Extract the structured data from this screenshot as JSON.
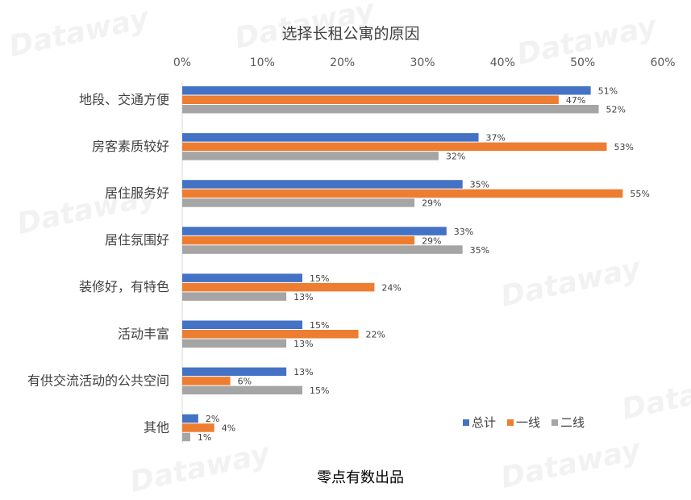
{
  "chart_data": {
    "type": "bar",
    "orientation": "horizontal",
    "title": "选择长租公寓的原因",
    "categories": [
      "地段、交通方便",
      "房客素质较好",
      "居住服务好",
      "居住氛围好",
      "装修好，有特色",
      "活动丰富",
      "有供交流活动的公共空间",
      "其他"
    ],
    "series": [
      {
        "name": "总计",
        "color": "#4472c4",
        "values": [
          51,
          37,
          35,
          33,
          15,
          15,
          13,
          2
        ]
      },
      {
        "name": "一线",
        "color": "#ed7d31",
        "values": [
          47,
          53,
          55,
          29,
          24,
          22,
          6,
          4
        ]
      },
      {
        "name": "二线",
        "color": "#a5a5a5",
        "values": [
          52,
          32,
          29,
          35,
          13,
          13,
          15,
          1
        ]
      }
    ],
    "xlim": [
      0,
      60
    ],
    "xticks": [
      0,
      10,
      20,
      30,
      40,
      50,
      60
    ],
    "tick_suffix": "%",
    "label_suffix": "%",
    "legend_position": "bottom-right",
    "grid": false
  },
  "footer": "零点有数出品",
  "watermark": "Dataway"
}
